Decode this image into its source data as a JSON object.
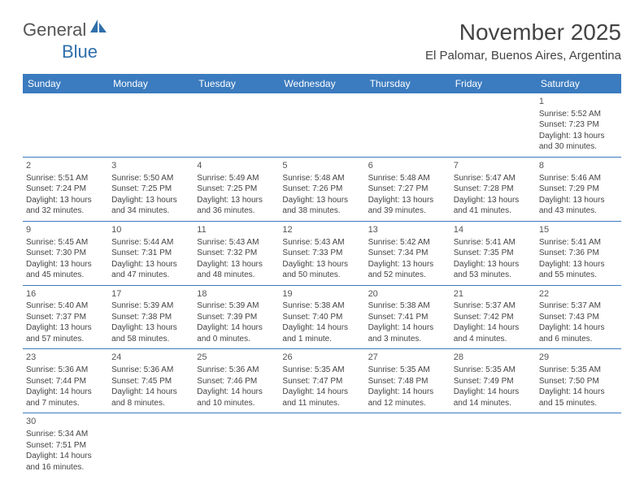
{
  "logo": {
    "word1": "General",
    "word2": "Blue"
  },
  "title": "November 2025",
  "location": "El Palomar, Buenos Aires, Argentina",
  "colors": {
    "header_bg": "#3b7bbf",
    "header_text": "#ffffff",
    "border": "#3b7bbf",
    "text": "#444444",
    "logo_gray": "#555555",
    "logo_blue": "#2f6fab",
    "background": "#ffffff"
  },
  "typography": {
    "title_fontsize": 28,
    "location_fontsize": 15,
    "dayheader_fontsize": 12,
    "daynum_fontsize": 11,
    "cell_fontsize": 10
  },
  "day_headers": [
    "Sunday",
    "Monday",
    "Tuesday",
    "Wednesday",
    "Thursday",
    "Friday",
    "Saturday"
  ],
  "weeks": [
    [
      null,
      null,
      null,
      null,
      null,
      null,
      {
        "n": "1",
        "sr": "Sunrise: 5:52 AM",
        "ss": "Sunset: 7:23 PM",
        "dl": "Daylight: 13 hours and 30 minutes."
      }
    ],
    [
      {
        "n": "2",
        "sr": "Sunrise: 5:51 AM",
        "ss": "Sunset: 7:24 PM",
        "dl": "Daylight: 13 hours and 32 minutes."
      },
      {
        "n": "3",
        "sr": "Sunrise: 5:50 AM",
        "ss": "Sunset: 7:25 PM",
        "dl": "Daylight: 13 hours and 34 minutes."
      },
      {
        "n": "4",
        "sr": "Sunrise: 5:49 AM",
        "ss": "Sunset: 7:25 PM",
        "dl": "Daylight: 13 hours and 36 minutes."
      },
      {
        "n": "5",
        "sr": "Sunrise: 5:48 AM",
        "ss": "Sunset: 7:26 PM",
        "dl": "Daylight: 13 hours and 38 minutes."
      },
      {
        "n": "6",
        "sr": "Sunrise: 5:48 AM",
        "ss": "Sunset: 7:27 PM",
        "dl": "Daylight: 13 hours and 39 minutes."
      },
      {
        "n": "7",
        "sr": "Sunrise: 5:47 AM",
        "ss": "Sunset: 7:28 PM",
        "dl": "Daylight: 13 hours and 41 minutes."
      },
      {
        "n": "8",
        "sr": "Sunrise: 5:46 AM",
        "ss": "Sunset: 7:29 PM",
        "dl": "Daylight: 13 hours and 43 minutes."
      }
    ],
    [
      {
        "n": "9",
        "sr": "Sunrise: 5:45 AM",
        "ss": "Sunset: 7:30 PM",
        "dl": "Daylight: 13 hours and 45 minutes."
      },
      {
        "n": "10",
        "sr": "Sunrise: 5:44 AM",
        "ss": "Sunset: 7:31 PM",
        "dl": "Daylight: 13 hours and 47 minutes."
      },
      {
        "n": "11",
        "sr": "Sunrise: 5:43 AM",
        "ss": "Sunset: 7:32 PM",
        "dl": "Daylight: 13 hours and 48 minutes."
      },
      {
        "n": "12",
        "sr": "Sunrise: 5:43 AM",
        "ss": "Sunset: 7:33 PM",
        "dl": "Daylight: 13 hours and 50 minutes."
      },
      {
        "n": "13",
        "sr": "Sunrise: 5:42 AM",
        "ss": "Sunset: 7:34 PM",
        "dl": "Daylight: 13 hours and 52 minutes."
      },
      {
        "n": "14",
        "sr": "Sunrise: 5:41 AM",
        "ss": "Sunset: 7:35 PM",
        "dl": "Daylight: 13 hours and 53 minutes."
      },
      {
        "n": "15",
        "sr": "Sunrise: 5:41 AM",
        "ss": "Sunset: 7:36 PM",
        "dl": "Daylight: 13 hours and 55 minutes."
      }
    ],
    [
      {
        "n": "16",
        "sr": "Sunrise: 5:40 AM",
        "ss": "Sunset: 7:37 PM",
        "dl": "Daylight: 13 hours and 57 minutes."
      },
      {
        "n": "17",
        "sr": "Sunrise: 5:39 AM",
        "ss": "Sunset: 7:38 PM",
        "dl": "Daylight: 13 hours and 58 minutes."
      },
      {
        "n": "18",
        "sr": "Sunrise: 5:39 AM",
        "ss": "Sunset: 7:39 PM",
        "dl": "Daylight: 14 hours and 0 minutes."
      },
      {
        "n": "19",
        "sr": "Sunrise: 5:38 AM",
        "ss": "Sunset: 7:40 PM",
        "dl": "Daylight: 14 hours and 1 minute."
      },
      {
        "n": "20",
        "sr": "Sunrise: 5:38 AM",
        "ss": "Sunset: 7:41 PM",
        "dl": "Daylight: 14 hours and 3 minutes."
      },
      {
        "n": "21",
        "sr": "Sunrise: 5:37 AM",
        "ss": "Sunset: 7:42 PM",
        "dl": "Daylight: 14 hours and 4 minutes."
      },
      {
        "n": "22",
        "sr": "Sunrise: 5:37 AM",
        "ss": "Sunset: 7:43 PM",
        "dl": "Daylight: 14 hours and 6 minutes."
      }
    ],
    [
      {
        "n": "23",
        "sr": "Sunrise: 5:36 AM",
        "ss": "Sunset: 7:44 PM",
        "dl": "Daylight: 14 hours and 7 minutes."
      },
      {
        "n": "24",
        "sr": "Sunrise: 5:36 AM",
        "ss": "Sunset: 7:45 PM",
        "dl": "Daylight: 14 hours and 8 minutes."
      },
      {
        "n": "25",
        "sr": "Sunrise: 5:36 AM",
        "ss": "Sunset: 7:46 PM",
        "dl": "Daylight: 14 hours and 10 minutes."
      },
      {
        "n": "26",
        "sr": "Sunrise: 5:35 AM",
        "ss": "Sunset: 7:47 PM",
        "dl": "Daylight: 14 hours and 11 minutes."
      },
      {
        "n": "27",
        "sr": "Sunrise: 5:35 AM",
        "ss": "Sunset: 7:48 PM",
        "dl": "Daylight: 14 hours and 12 minutes."
      },
      {
        "n": "28",
        "sr": "Sunrise: 5:35 AM",
        "ss": "Sunset: 7:49 PM",
        "dl": "Daylight: 14 hours and 14 minutes."
      },
      {
        "n": "29",
        "sr": "Sunrise: 5:35 AM",
        "ss": "Sunset: 7:50 PM",
        "dl": "Daylight: 14 hours and 15 minutes."
      }
    ],
    [
      {
        "n": "30",
        "sr": "Sunrise: 5:34 AM",
        "ss": "Sunset: 7:51 PM",
        "dl": "Daylight: 14 hours and 16 minutes."
      },
      null,
      null,
      null,
      null,
      null,
      null
    ]
  ]
}
